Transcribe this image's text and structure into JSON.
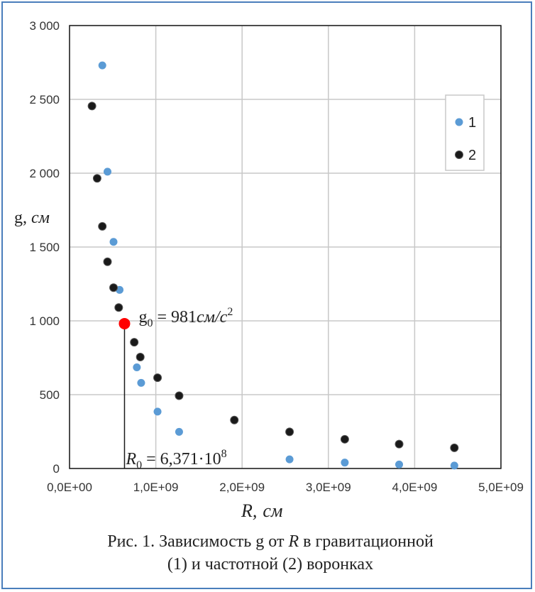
{
  "chart_data": {
    "type": "scatter",
    "x_ticks": [
      "0,0E+00",
      "1,0E+09",
      "2,0E+09",
      "3,0E+09",
      "4,0E+09",
      "5,0E+09"
    ],
    "y_ticks": [
      "0",
      "500",
      "1 000",
      "1 500",
      "2 000",
      "2 500",
      "3 000"
    ],
    "xlim": [
      0,
      5000000000
    ],
    "ylim": [
      0,
      3000
    ],
    "grid": true,
    "legend_position": "top-right",
    "xlabel_symbol": "R,",
    "xlabel_unit": "см",
    "ylabel_symbol": "g,",
    "ylabel_unit": "см",
    "series": [
      {
        "name": "1",
        "color": "#5b9bd5",
        "points": [
          [
            380000000,
            2730
          ],
          [
            440000000,
            2010
          ],
          [
            510000000,
            1535
          ],
          [
            580000000,
            1210
          ],
          [
            780000000,
            685
          ],
          [
            830000000,
            580
          ],
          [
            1020000000,
            385
          ],
          [
            1270000000,
            248
          ],
          [
            2550000000,
            62
          ],
          [
            3190000000,
            40
          ],
          [
            3820000000,
            27
          ],
          [
            4460000000,
            20
          ]
        ]
      },
      {
        "name": "2",
        "color": "#1a1a1a",
        "points": [
          [
            260000000,
            2455
          ],
          [
            320000000,
            1965
          ],
          [
            380000000,
            1640
          ],
          [
            440000000,
            1400
          ],
          [
            510000000,
            1225
          ],
          [
            570000000,
            1090
          ],
          [
            750000000,
            855
          ],
          [
            820000000,
            755
          ],
          [
            1020000000,
            615
          ],
          [
            1270000000,
            493
          ],
          [
            1910000000,
            328
          ],
          [
            2550000000,
            248
          ],
          [
            3190000000,
            198
          ],
          [
            3820000000,
            165
          ],
          [
            4460000000,
            140
          ]
        ]
      }
    ],
    "highlight": {
      "x": 637100000,
      "y": 981,
      "color": "#ff0000",
      "label_g": "g",
      "label_g_sub": "0",
      "label_eq": " = 981",
      "label_unit": "см/с",
      "label_sup": "2",
      "label_r": "R",
      "label_r_sub": "0",
      "label_r_value": " = 6,371·10",
      "label_r_sup": "8"
    }
  },
  "caption": {
    "line1_pre": "Рис. 1. Зависимость g от ",
    "line1_var": "R",
    "line1_post": " в гравитационной",
    "line2": "(1) и частотной (2) воронках"
  }
}
